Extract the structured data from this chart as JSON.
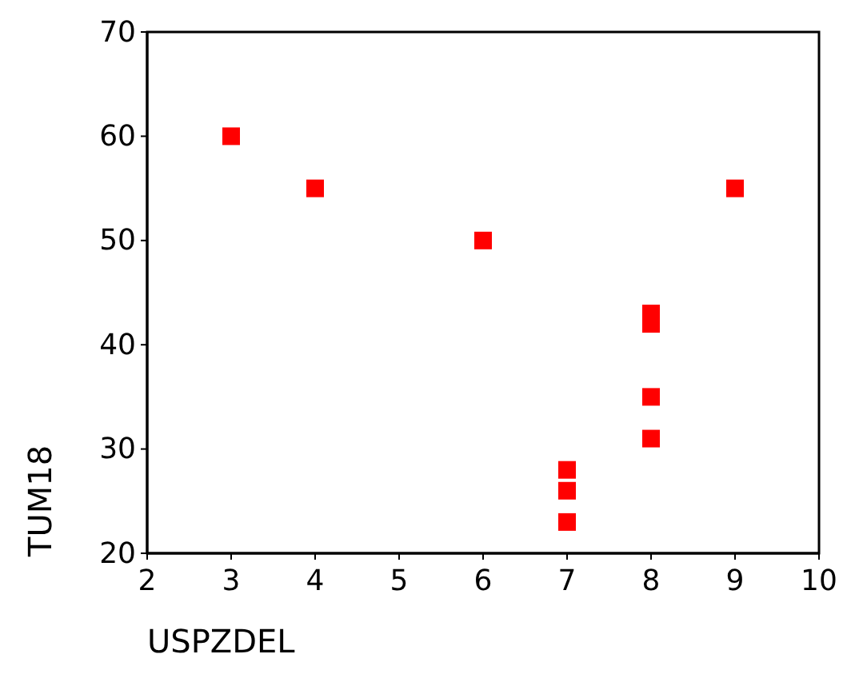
{
  "chart_data": {
    "type": "scatter",
    "xlabel": "USPZDEL",
    "ylabel": "TUM18",
    "marker": "square",
    "x": [
      3,
      4,
      6,
      9,
      8,
      8,
      8,
      8,
      7,
      7,
      7
    ],
    "values": [
      60,
      55,
      50,
      55,
      43,
      42,
      35,
      31,
      28,
      26,
      23
    ],
    "color": "#ff0000",
    "xlim": [
      2,
      10
    ],
    "xticks": [
      2,
      3,
      4,
      5,
      6,
      7,
      8,
      9,
      10
    ],
    "ylim": [
      20,
      70
    ],
    "yticks": [
      20,
      30,
      40,
      50,
      60,
      70
    ]
  }
}
